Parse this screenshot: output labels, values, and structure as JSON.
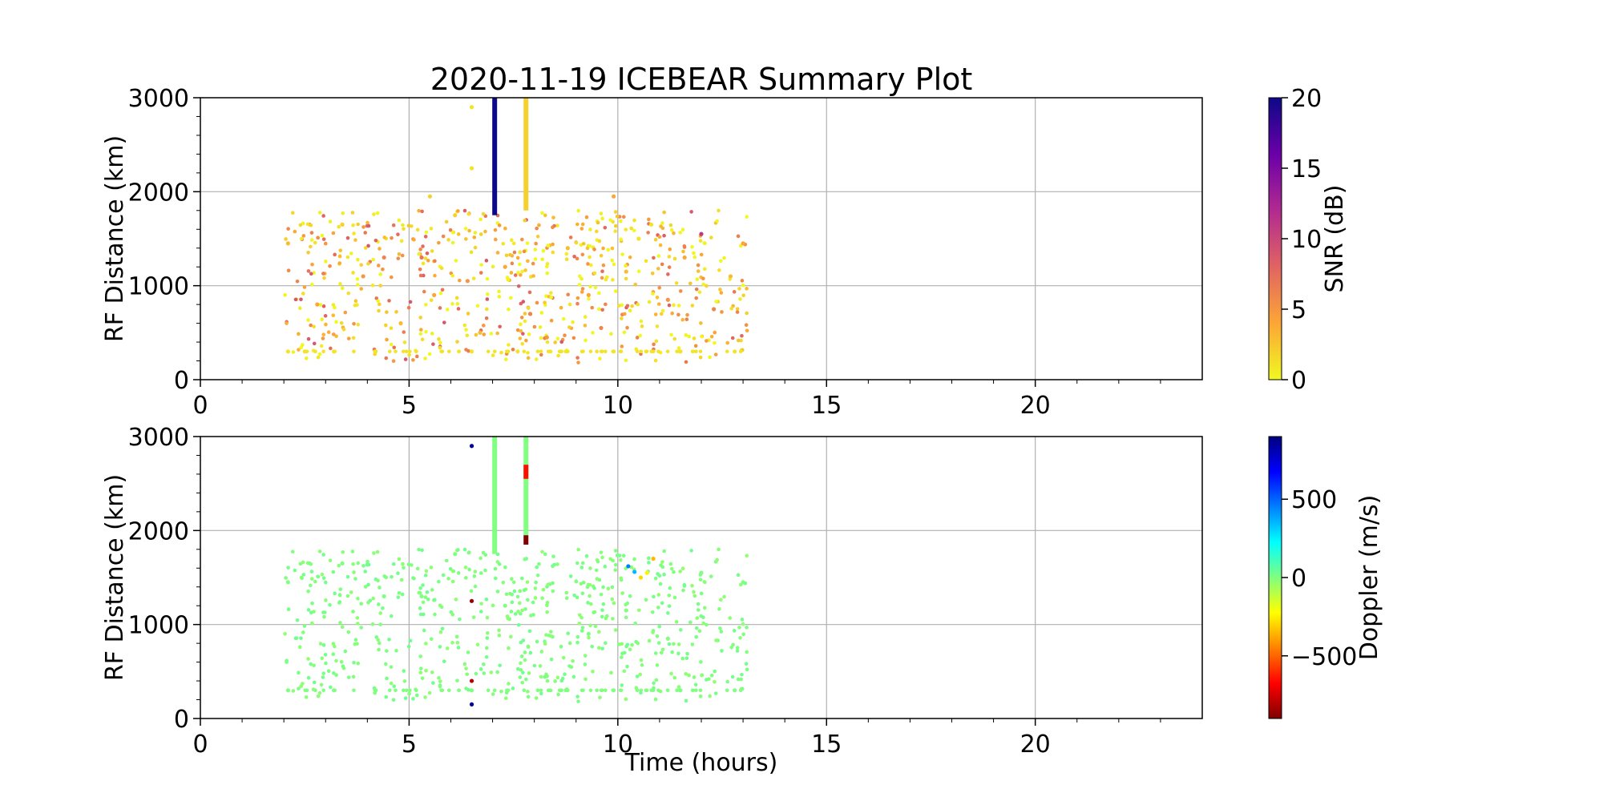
{
  "chart_data": [
    {
      "type": "scatter",
      "title": "2020-11-19 ICEBEAR Summary Plot",
      "xlabel": "",
      "ylabel": "RF Distance (km)",
      "xlim": [
        0,
        24
      ],
      "ylim": [
        0,
        3000
      ],
      "xticks": [
        "0",
        "5",
        "10",
        "15",
        "20"
      ],
      "yticks": [
        "0",
        "1000",
        "2000",
        "3000"
      ],
      "grid": true,
      "colorbar": {
        "label": "SNR (dB)",
        "range": [
          0,
          20
        ],
        "ticks": [
          "0",
          "5",
          "10",
          "15",
          "20"
        ],
        "colormap": "plasma_r",
        "colors": [
          "#f0f921",
          "#fca636",
          "#e16462",
          "#b12a90",
          "#6a00a8",
          "#0d0887"
        ]
      },
      "series": [
        {
          "points_sample": [
            [
              2.1,
              300,
              1
            ],
            [
              2.5,
              300,
              1
            ],
            [
              3.2,
              300,
              1
            ],
            [
              4.2,
              300,
              1
            ],
            [
              6.5,
              300,
              1
            ],
            [
              7.6,
              300,
              1
            ],
            [
              9.9,
              300,
              1
            ],
            [
              11.5,
              300,
              1
            ],
            [
              12.8,
              300,
              1
            ],
            [
              2.1,
              1450,
              3
            ],
            [
              2.8,
              800,
              4
            ],
            [
              3.4,
              1650,
              2
            ],
            [
              3.9,
              1100,
              5
            ],
            [
              4.4,
              1300,
              6
            ],
            [
              4.8,
              600,
              3
            ],
            [
              5.3,
              1300,
              7
            ],
            [
              5.6,
              900,
              4
            ],
            [
              6.1,
              1750,
              2
            ],
            [
              6.4,
              1050,
              5
            ],
            [
              6.7,
              500,
              3
            ],
            [
              7.3,
              1200,
              4
            ],
            [
              7.9,
              700,
              6
            ],
            [
              8.3,
              450,
              5
            ],
            [
              8.8,
              1400,
              3
            ],
            [
              9.3,
              900,
              4
            ],
            [
              9.6,
              550,
              6
            ],
            [
              10.2,
              1150,
              3
            ],
            [
              10.5,
              1500,
              1
            ],
            [
              10.8,
              1650,
              1
            ],
            [
              11.2,
              850,
              5
            ],
            [
              11.6,
              1300,
              4
            ],
            [
              12.0,
              1550,
              11
            ],
            [
              12.3,
              750,
              6
            ],
            [
              12.7,
              1100,
              3
            ],
            [
              13.0,
              1450,
              4
            ],
            [
              6.5,
              2900,
              1
            ],
            [
              6.5,
              2250,
              1
            ],
            [
              5.5,
              1950,
              2
            ],
            [
              9.9,
              1950,
              4
            ]
          ]
        }
      ],
      "vertical_streaks": [
        {
          "x": 7.05,
          "y_range": [
            1750,
            3000
          ],
          "snr": 20
        },
        {
          "x": 7.8,
          "y_range": [
            1800,
            3000
          ],
          "snr": 2
        }
      ]
    },
    {
      "type": "scatter",
      "title": "",
      "xlabel": "Time (hours)",
      "ylabel": "RF Distance (km)",
      "xlim": [
        0,
        24
      ],
      "ylim": [
        0,
        3000
      ],
      "xticks": [
        "0",
        "5",
        "10",
        "15",
        "20"
      ],
      "yticks": [
        "0",
        "1000",
        "2000",
        "3000"
      ],
      "grid": true,
      "colorbar": {
        "label": "Doppler (m/s)",
        "range": [
          -900,
          900
        ],
        "ticks": [
          "−500",
          "0",
          "500"
        ],
        "tick_values": [
          -500,
          0,
          500
        ],
        "colormap": "jet_r",
        "colors": [
          "#800000",
          "#ff0000",
          "#ff8000",
          "#ffff00",
          "#80ff80",
          "#00ffff",
          "#0080ff",
          "#0000ff",
          "#000080"
        ]
      },
      "series": [
        {
          "points_sample": [
            [
              2.1,
              300,
              0
            ],
            [
              3.2,
              300,
              0
            ],
            [
              4.2,
              300,
              0
            ],
            [
              6.5,
              300,
              0
            ],
            [
              9.9,
              300,
              0
            ],
            [
              11.5,
              300,
              0
            ],
            [
              12.8,
              300,
              0
            ],
            [
              2.1,
              1450,
              0
            ],
            [
              3.4,
              1650,
              0
            ],
            [
              4.4,
              1300,
              0
            ],
            [
              5.3,
              1300,
              0
            ],
            [
              6.1,
              1750,
              0
            ],
            [
              7.3,
              1200,
              0
            ],
            [
              8.3,
              450,
              0
            ],
            [
              9.3,
              900,
              0
            ],
            [
              10.2,
              1150,
              0
            ],
            [
              11.2,
              850,
              0
            ],
            [
              12.0,
              1550,
              0
            ],
            [
              13.0,
              1450,
              0
            ],
            [
              10.25,
              1620,
              450
            ],
            [
              10.4,
              1560,
              350
            ],
            [
              10.55,
              1500,
              -300
            ],
            [
              10.7,
              1550,
              -250
            ],
            [
              10.85,
              1700,
              -350
            ],
            [
              6.5,
              2900,
              850
            ],
            [
              6.5,
              150,
              850
            ],
            [
              6.5,
              1250,
              -850
            ],
            [
              6.5,
              400,
              -800
            ]
          ]
        }
      ],
      "vertical_streaks": [
        {
          "x": 7.05,
          "y_range": [
            1750,
            3000
          ],
          "doppler": 0
        },
        {
          "x": 7.8,
          "y_range": [
            1950,
            3000
          ],
          "doppler": 0
        },
        {
          "x": 7.8,
          "y_range": [
            2550,
            2700
          ],
          "doppler": -650
        },
        {
          "x": 7.8,
          "y_range": [
            1850,
            1950
          ],
          "doppler": -900
        }
      ]
    }
  ]
}
